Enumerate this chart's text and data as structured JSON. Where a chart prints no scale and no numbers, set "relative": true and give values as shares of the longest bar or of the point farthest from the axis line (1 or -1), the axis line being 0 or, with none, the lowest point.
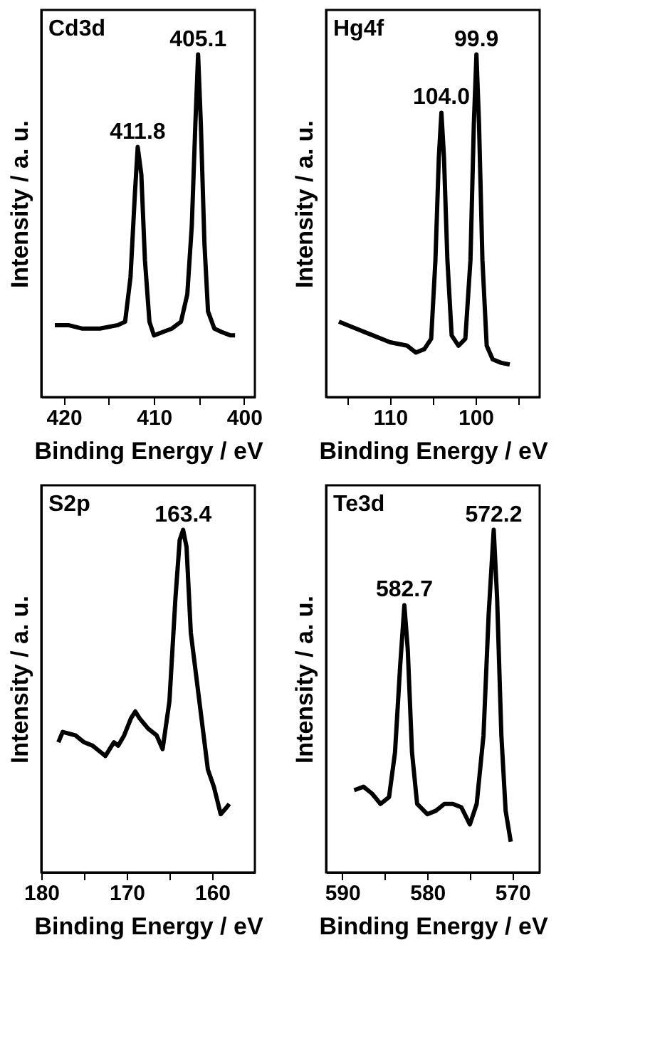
{
  "chart_data": [
    {
      "type": "line",
      "title": "Cd3d",
      "xlabel": "Binding Energy / eV",
      "ylabel": "Intensity / a. u.",
      "relative": true,
      "tick_labels": "x",
      "grid": false,
      "legend": false,
      "marker": "none",
      "line_style": "solid",
      "xlim": [
        422.5,
        398.8
      ],
      "xticks": [
        420,
        {
          "value": 415,
          "label": null
        },
        410,
        {
          "value": 405,
          "label": null
        },
        400
      ],
      "annotations": [
        {
          "text": "411.8",
          "x": 411.8,
          "y": 0.73
        },
        {
          "text": "405.1",
          "x": 405.1,
          "y": 1.0
        }
      ],
      "series": [
        {
          "color": "#000000",
          "x": [
            421,
            419.5,
            418,
            416,
            414,
            413.2,
            412.6,
            412.1,
            411.8,
            411.4,
            411,
            410.5,
            410,
            409,
            408,
            407,
            406.3,
            405.8,
            405.4,
            405.1,
            404.8,
            404.4,
            404,
            403.3,
            402.5,
            401.5,
            401
          ],
          "values": [
            0.21,
            0.21,
            0.2,
            0.2,
            0.21,
            0.22,
            0.35,
            0.6,
            0.73,
            0.65,
            0.4,
            0.22,
            0.18,
            0.19,
            0.2,
            0.22,
            0.3,
            0.5,
            0.8,
            1.0,
            0.8,
            0.45,
            0.25,
            0.2,
            0.19,
            0.18,
            0.18
          ]
        }
      ]
    },
    {
      "type": "line",
      "title": "Hg4f",
      "xlabel": "Binding Energy / eV",
      "ylabel": "Intensity / a. u.",
      "relative": true,
      "tick_labels": "x",
      "grid": false,
      "legend": false,
      "marker": "none",
      "line_style": "solid",
      "xlim": [
        117.5,
        92.5
      ],
      "xticks": [
        {
          "value": 115,
          "label": null
        },
        110,
        {
          "value": 105,
          "label": null
        },
        100,
        {
          "value": 95,
          "label": null
        }
      ],
      "annotations": [
        {
          "text": "104.0",
          "x": 104.0,
          "y": 0.83
        },
        {
          "text": "99.9",
          "x": 99.9,
          "y": 1.0
        }
      ],
      "series": [
        {
          "color": "#000000",
          "x": [
            116,
            114,
            112,
            110,
            108,
            107,
            106,
            105.2,
            104.7,
            104.3,
            104.0,
            103.7,
            103.3,
            102.8,
            102,
            101.2,
            100.6,
            100.2,
            99.9,
            99.6,
            99.2,
            98.7,
            98,
            97,
            96
          ],
          "values": [
            0.22,
            0.2,
            0.18,
            0.16,
            0.15,
            0.13,
            0.14,
            0.17,
            0.4,
            0.7,
            0.83,
            0.7,
            0.4,
            0.18,
            0.15,
            0.17,
            0.4,
            0.8,
            1.0,
            0.8,
            0.4,
            0.15,
            0.11,
            0.1,
            0.095
          ]
        }
      ]
    },
    {
      "type": "line",
      "title": "S2p",
      "xlabel": "Binding Energy / eV",
      "ylabel": "Intensity / a. u.",
      "relative": true,
      "tick_labels": "x",
      "grid": false,
      "legend": false,
      "marker": "none",
      "line_style": "solid",
      "xlim": [
        180,
        155
      ],
      "xticks": [
        180,
        {
          "value": 175,
          "label": null
        },
        170,
        {
          "value": 165,
          "label": null
        },
        160
      ],
      "annotations": [
        {
          "text": "163.4",
          "x": 163.4,
          "y": 1.0
        }
      ],
      "series": [
        {
          "color": "#000000",
          "x": [
            178,
            177.5,
            176,
            175,
            174,
            173,
            172.5,
            171.5,
            171,
            170.3,
            169.5,
            169,
            168.5,
            167.5,
            166.5,
            165.8,
            165,
            164.3,
            163.8,
            163.4,
            163,
            162.5,
            161.5,
            160.5,
            159.8,
            159,
            158.3,
            158
          ],
          "values": [
            0.38,
            0.41,
            0.4,
            0.38,
            0.37,
            0.35,
            0.34,
            0.38,
            0.37,
            0.4,
            0.45,
            0.47,
            0.45,
            0.42,
            0.4,
            0.36,
            0.5,
            0.8,
            0.97,
            1.0,
            0.95,
            0.7,
            0.5,
            0.3,
            0.25,
            0.17,
            0.19,
            0.2
          ]
        }
      ]
    },
    {
      "type": "line",
      "title": "Te3d",
      "xlabel": "Binding Energy / eV",
      "ylabel": "Intensity / a. u.",
      "relative": true,
      "tick_labels": "x",
      "grid": false,
      "legend": false,
      "marker": "none",
      "line_style": "solid",
      "xlim": [
        591.9,
        566.8
      ],
      "xticks": [
        590,
        {
          "value": 585,
          "label": null
        },
        580,
        {
          "value": 575,
          "label": null
        },
        570
      ],
      "annotations": [
        {
          "text": "582.7",
          "x": 582.7,
          "y": 0.78
        },
        {
          "text": "572.2",
          "x": 572.2,
          "y": 1.0
        }
      ],
      "series": [
        {
          "color": "#000000",
          "x": [
            588.6,
            587.5,
            586.5,
            585.5,
            584.5,
            583.8,
            583.2,
            582.7,
            582.3,
            581.8,
            581.2,
            580,
            579,
            578,
            577,
            576,
            575,
            574.2,
            573.4,
            572.8,
            572.2,
            571.8,
            571.3,
            570.8,
            570.2
          ],
          "values": [
            0.24,
            0.25,
            0.23,
            0.2,
            0.22,
            0.35,
            0.6,
            0.78,
            0.65,
            0.35,
            0.2,
            0.17,
            0.18,
            0.2,
            0.2,
            0.19,
            0.14,
            0.2,
            0.4,
            0.75,
            1.0,
            0.8,
            0.4,
            0.18,
            0.09
          ]
        }
      ]
    }
  ]
}
